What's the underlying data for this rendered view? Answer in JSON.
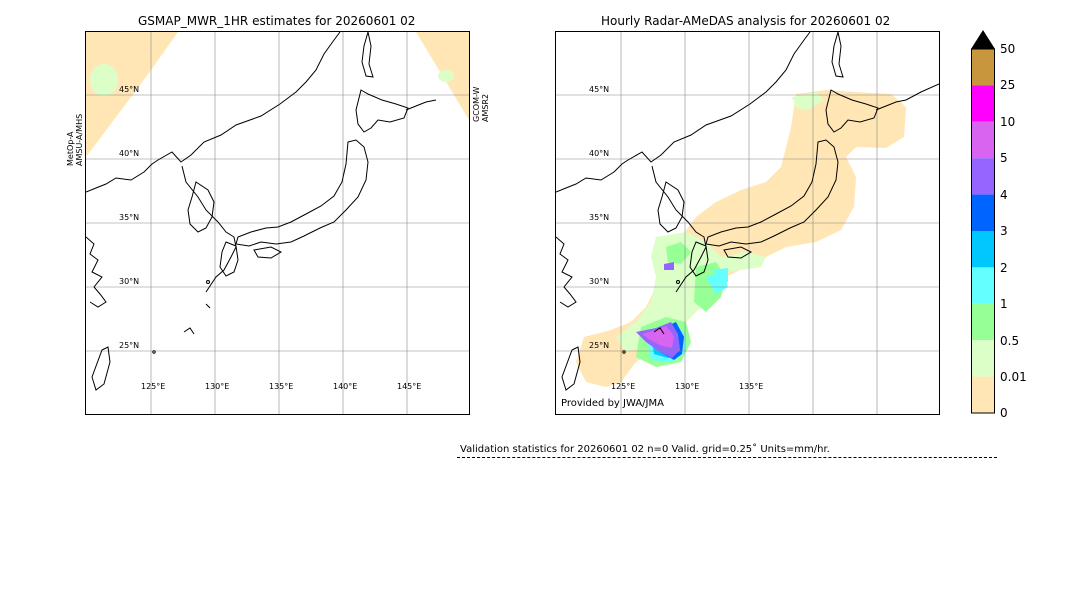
{
  "left_map": {
    "title": "GSMAP_MWR_1HR estimates for 20260601 02",
    "sensor_left_1": "MetOp-A",
    "sensor_left_2": "AMSU-A/MHS",
    "sensor_right_1": "GCOM-W",
    "sensor_right_2": "AMSR2",
    "lat_labels": [
      "45°N",
      "40°N",
      "35°N",
      "30°N",
      "25°N"
    ],
    "lon_labels": [
      "125°E",
      "130°E",
      "135°E",
      "140°E",
      "145°E"
    ]
  },
  "right_map": {
    "title": "Hourly Radar-AMeDAS analysis for 20260601 02",
    "credit": "Provided by JWA/JMA",
    "lat_labels": [
      "45°N",
      "40°N",
      "35°N",
      "30°N",
      "25°N"
    ],
    "lon_labels": [
      "125°E",
      "130°E",
      "135°E"
    ]
  },
  "colorbar": {
    "labels": [
      "50",
      "25",
      "10",
      "5",
      "4",
      "3",
      "2",
      "1",
      "0.5",
      "0.01",
      "0"
    ],
    "colors": [
      "#c8963c",
      "#ff00ff",
      "#d864f0",
      "#9664ff",
      "#0064ff",
      "#00c8ff",
      "#64ffff",
      "#96ff96",
      "#dcffc8",
      "#ffe6b4"
    ],
    "extend_color": "#000000"
  },
  "validation": {
    "text": "Validation statistics for 20260601 02  n=0 Valid. grid=0.25˚ Units=mm/hr."
  }
}
